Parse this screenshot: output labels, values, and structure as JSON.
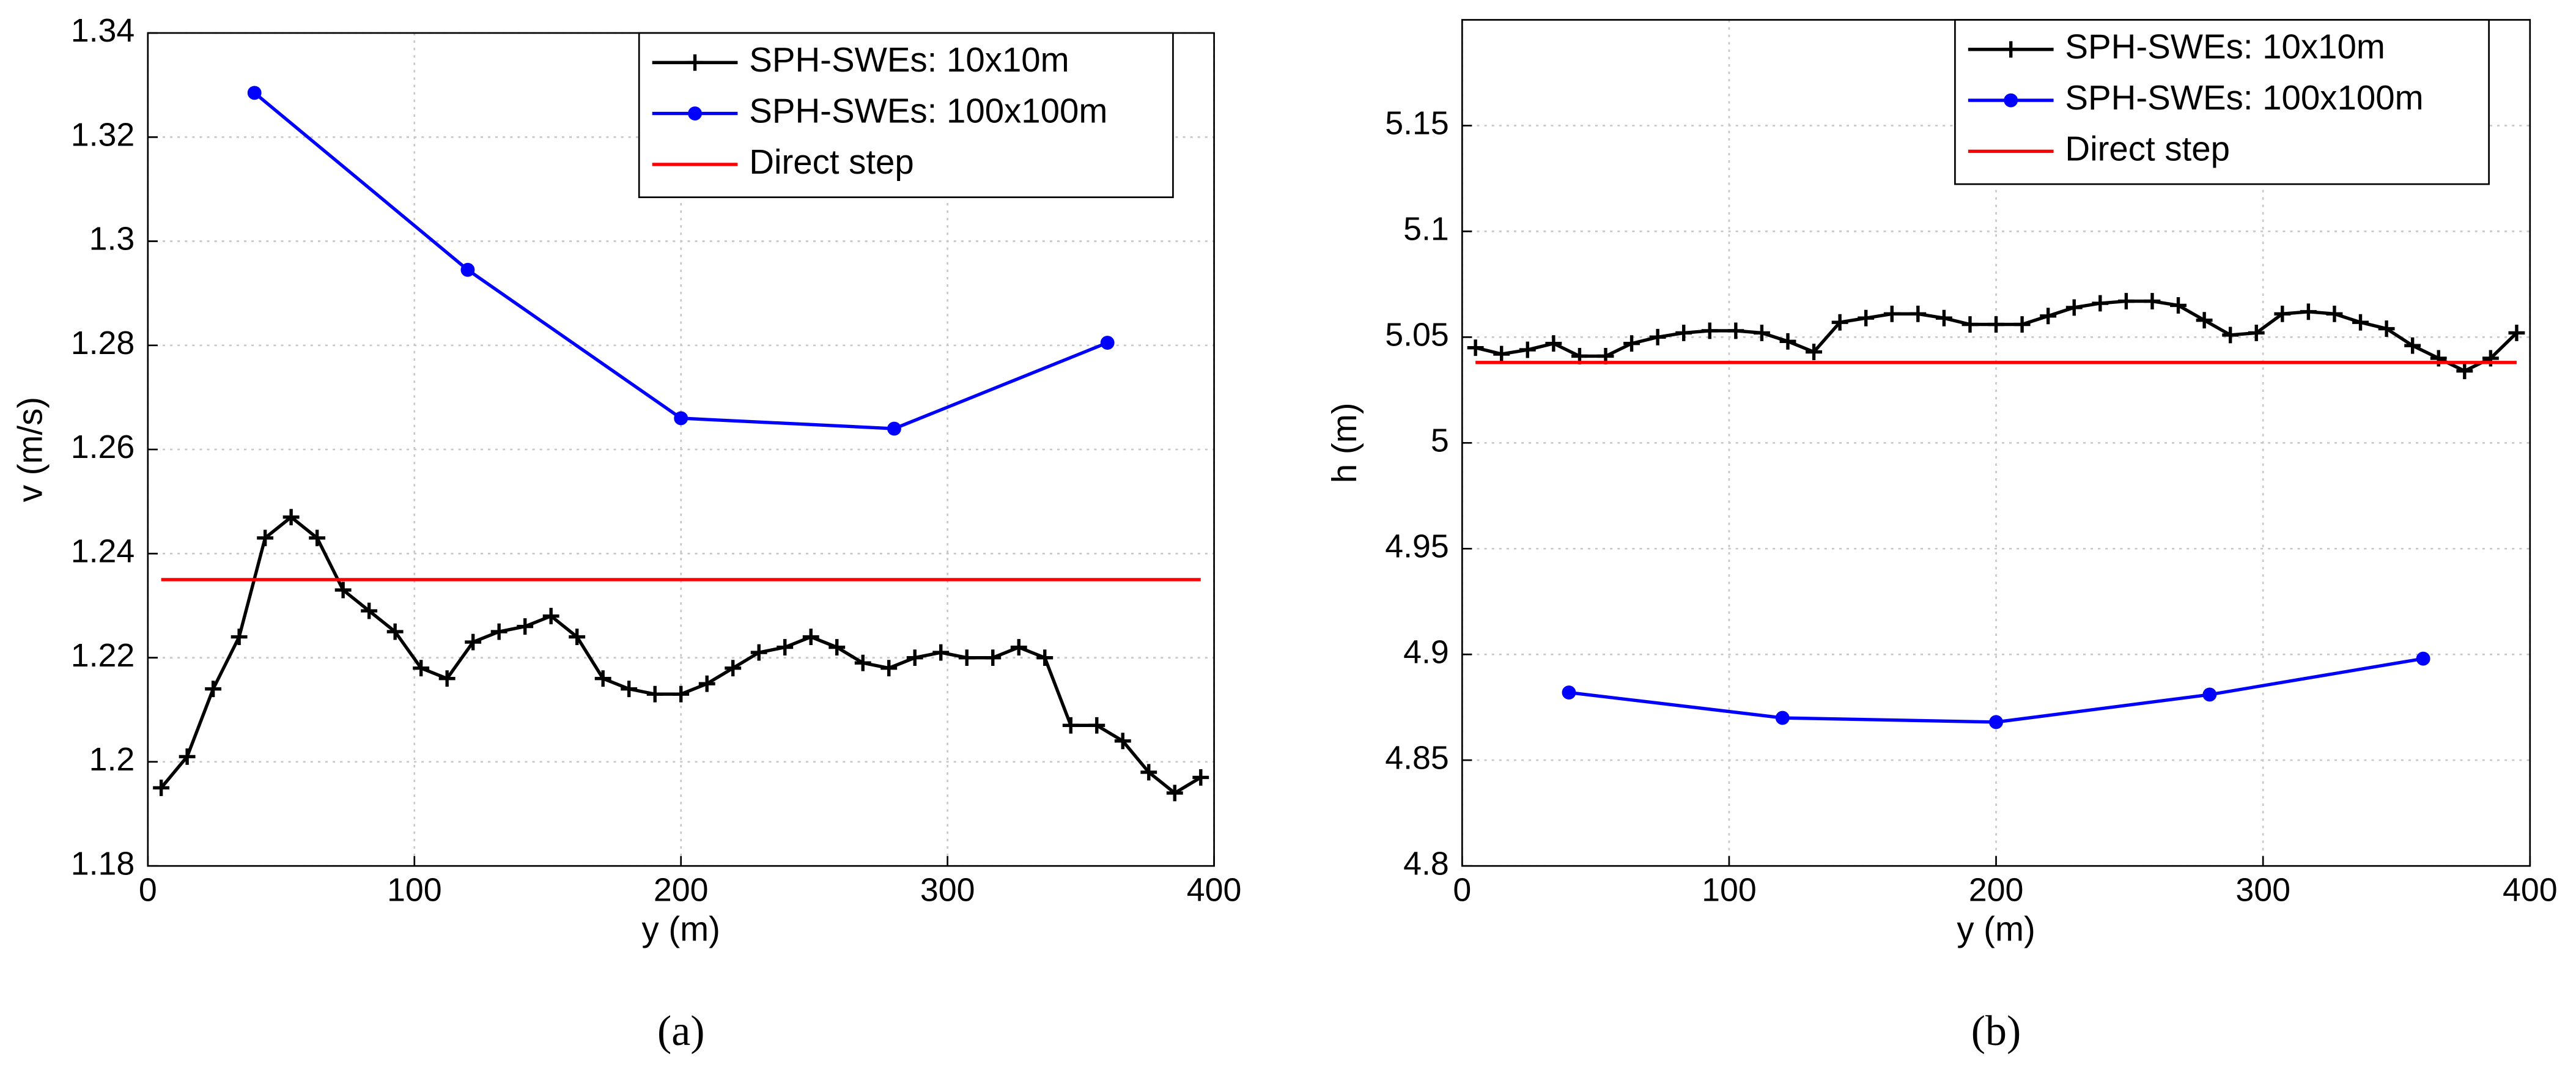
{
  "chart_data": [
    {
      "type": "line",
      "caption": "(a)",
      "xlabel": "y (m)",
      "ylabel": "v (m/s)",
      "xlim": [
        0,
        400
      ],
      "ylim": [
        1.18,
        1.34
      ],
      "xticks": [
        0,
        100,
        200,
        300,
        400
      ],
      "yticks": [
        1.18,
        1.2,
        1.22,
        1.24,
        1.26,
        1.28,
        1.3,
        1.32,
        1.34
      ],
      "grid": true,
      "legend": "upper right",
      "series": [
        {
          "name": "SPH-SWEs: 10x10m",
          "color": "#000000",
          "marker": "+",
          "x": [
            5,
            14.75,
            24.5,
            34.25,
            44,
            53.75,
            63.5,
            73.25,
            83,
            92.75,
            102.5,
            112.25,
            122,
            131.75,
            141.5,
            151.25,
            161,
            170.75,
            180.5,
            190.25,
            200,
            209.75,
            219.5,
            229.25,
            239,
            248.75,
            258.5,
            268.25,
            278,
            287.75,
            297.5,
            307.25,
            317,
            326.75,
            336.5,
            346.25,
            356,
            365.75,
            375.5,
            385.25,
            395
          ],
          "values": [
            1.195,
            1.201,
            1.214,
            1.224,
            1.243,
            1.247,
            1.243,
            1.233,
            1.229,
            1.225,
            1.218,
            1.216,
            1.223,
            1.225,
            1.226,
            1.228,
            1.224,
            1.216,
            1.214,
            1.213,
            1.213,
            1.215,
            1.218,
            1.221,
            1.222,
            1.224,
            1.222,
            1.219,
            1.218,
            1.22,
            1.221,
            1.22,
            1.22,
            1.222,
            1.22,
            1.207,
            1.207,
            1.204,
            1.198,
            1.194,
            1.197
          ]
        },
        {
          "name": "SPH-SWEs: 100x100m",
          "color": "#0000ff",
          "marker": "o",
          "x": [
            40,
            120,
            200,
            280,
            360
          ],
          "values": [
            1.3285,
            1.2945,
            1.266,
            1.264,
            1.2805
          ]
        },
        {
          "name": "Direct step",
          "color": "#ff0000",
          "marker": "none",
          "x": [
            5,
            395
          ],
          "values": [
            1.235,
            1.235
          ]
        }
      ]
    },
    {
      "type": "line",
      "caption": "(b)",
      "xlabel": "y (m)",
      "ylabel": "h (m)",
      "xlim": [
        0,
        400
      ],
      "ylim": [
        4.8,
        5.2
      ],
      "xticks": [
        0,
        100,
        200,
        300,
        400
      ],
      "yticks": [
        4.8,
        4.85,
        4.9,
        4.95,
        5,
        5.05,
        5.1,
        5.15
      ],
      "grid": true,
      "legend": "upper right",
      "series": [
        {
          "name": "SPH-SWEs: 10x10m",
          "color": "#000000",
          "marker": "+",
          "x": [
            5,
            14.75,
            24.5,
            34.25,
            44,
            53.75,
            63.5,
            73.25,
            83,
            92.75,
            102.5,
            112.25,
            122,
            131.75,
            141.5,
            151.25,
            161,
            170.75,
            180.5,
            190.25,
            200,
            209.75,
            219.5,
            229.25,
            239,
            248.75,
            258.5,
            268.25,
            278,
            287.75,
            297.5,
            307.25,
            317,
            326.75,
            336.5,
            346.25,
            356,
            365.75,
            375.5,
            385.25,
            395
          ],
          "values": [
            5.045,
            5.042,
            5.044,
            5.047,
            5.041,
            5.041,
            5.047,
            5.05,
            5.052,
            5.053,
            5.053,
            5.052,
            5.048,
            5.043,
            5.057,
            5.059,
            5.061,
            5.061,
            5.059,
            5.056,
            5.056,
            5.056,
            5.06,
            5.064,
            5.066,
            5.067,
            5.067,
            5.065,
            5.058,
            5.051,
            5.052,
            5.061,
            5.062,
            5.061,
            5.057,
            5.054,
            5.046,
            5.04,
            5.034,
            5.04,
            5.052
          ]
        },
        {
          "name": "SPH-SWEs: 100x100m",
          "color": "#0000ff",
          "marker": "o",
          "x": [
            40,
            120,
            200,
            280,
            360
          ],
          "values": [
            4.882,
            4.87,
            4.868,
            4.881,
            4.898
          ]
        },
        {
          "name": "Direct step",
          "color": "#ff0000",
          "marker": "none",
          "x": [
            5,
            395
          ],
          "values": [
            5.038,
            5.038
          ]
        }
      ]
    }
  ]
}
